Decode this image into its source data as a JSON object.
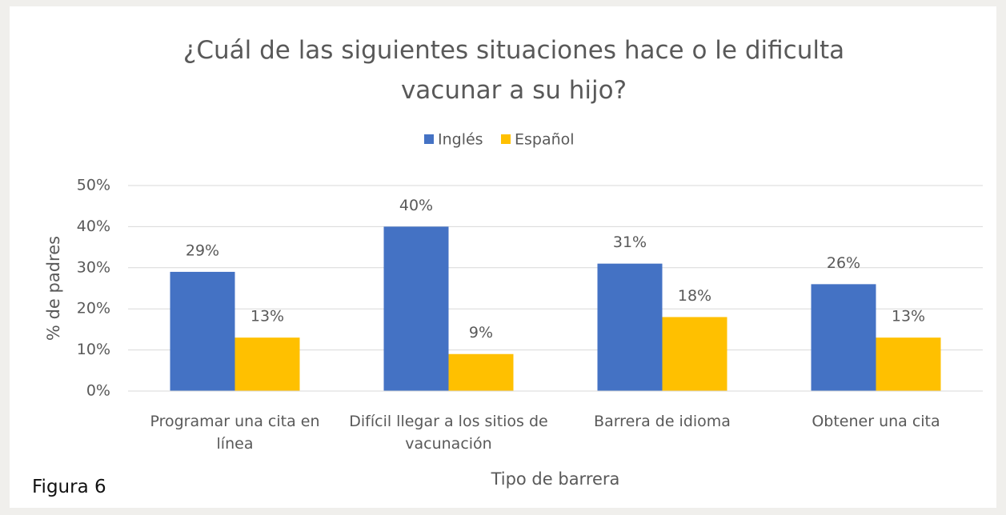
{
  "chart_data": {
    "type": "bar",
    "title": "¿Cuál de las siguientes situaciones hace o le dificulta vacunar a su hijo?",
    "categories": [
      "Programar una cita en línea",
      "Difícil llegar a los sitios de vacunación",
      "Barrera de idioma",
      "Obtener una cita"
    ],
    "series": [
      {
        "name": "Inglés",
        "color": "#4472c4",
        "values": [
          29,
          40,
          31,
          26
        ],
        "value_labels": [
          "29%",
          "40%",
          "31%",
          "26%"
        ]
      },
      {
        "name": "Español",
        "color": "#ffc000",
        "values": [
          13,
          9,
          18,
          13
        ],
        "value_labels": [
          "13%",
          "9%",
          "18%",
          "13%"
        ]
      }
    ],
    "x_label": "Tipo de barrera",
    "y_label": "% de padres",
    "ylim": [
      0,
      50
    ],
    "yticks": [
      {
        "value": 0,
        "label": "0%"
      },
      {
        "value": 10,
        "label": "10%"
      },
      {
        "value": 20,
        "label": "20%"
      },
      {
        "value": 30,
        "label": "30%"
      },
      {
        "value": 40,
        "label": "40%"
      },
      {
        "value": 50,
        "label": "50%"
      }
    ],
    "grid": true,
    "legend": "top"
  },
  "caption": "Figura 6"
}
